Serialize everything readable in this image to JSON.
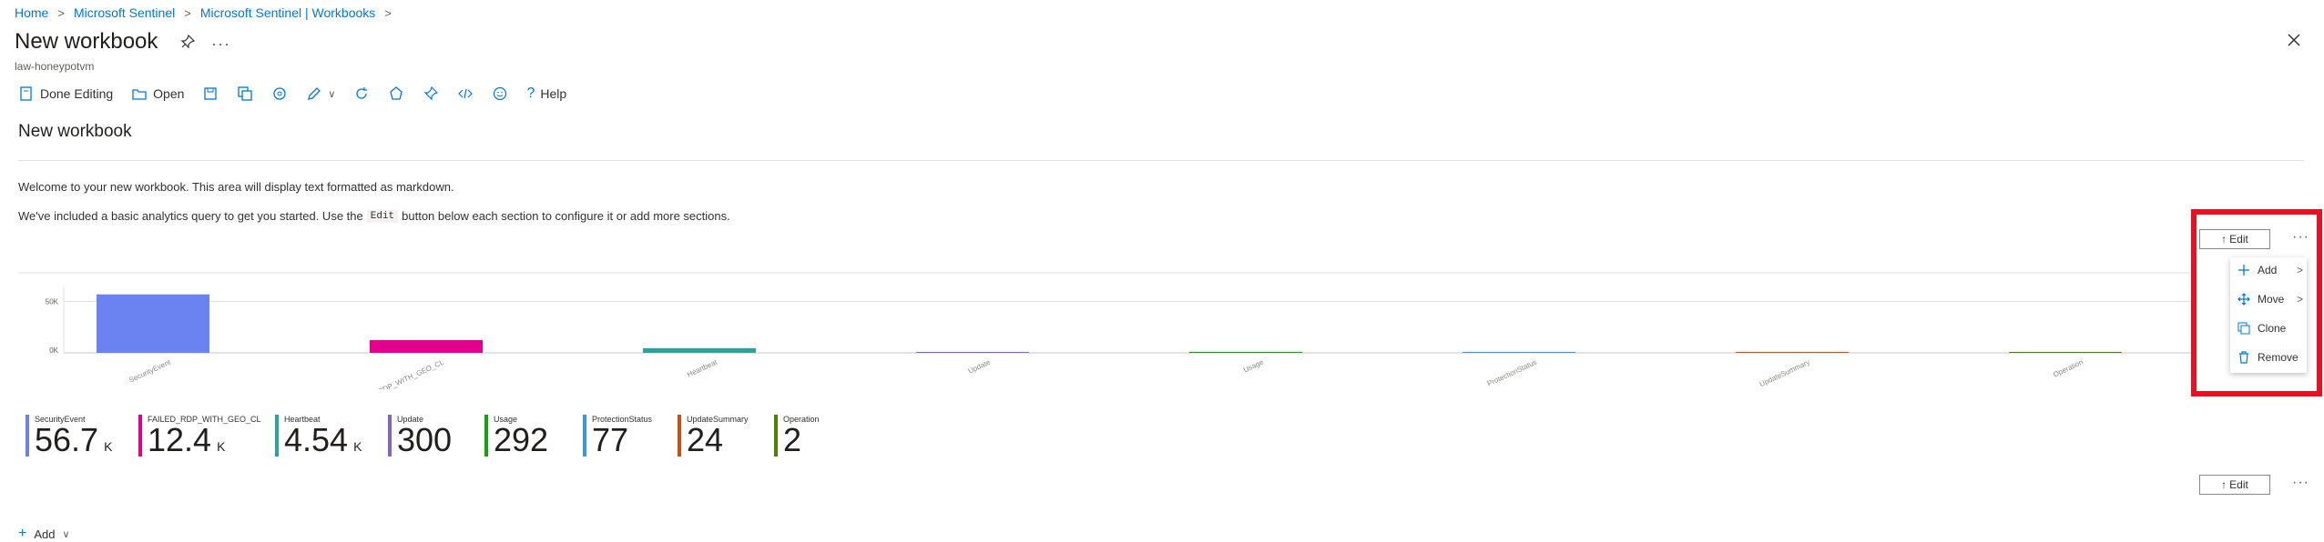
{
  "breadcrumb": [
    "Home",
    "Microsoft Sentinel",
    "Microsoft Sentinel | Workbooks"
  ],
  "header": {
    "title": "New workbook",
    "subtitle": "law-honeypotvm"
  },
  "toolbar": {
    "done_editing": "Done Editing",
    "open": "Open",
    "help": "Help"
  },
  "content": {
    "heading": "New workbook",
    "para1": "Welcome to your new workbook. This area will display text formatted as markdown.",
    "para2_before": "We've included a basic analytics query to get you started. Use the",
    "para2_code": "Edit",
    "para2_after": "button below each section to configure it or add more sections."
  },
  "section": {
    "edit_label": "Edit",
    "more": "···"
  },
  "menu": {
    "add": "Add",
    "move": "Move",
    "clone": "Clone",
    "remove": "Remove"
  },
  "chart_data": {
    "type": "bar",
    "categories": [
      "SecurityEvent",
      "FAILED_RDP_WITH_GEO_CL",
      "Heartbeat",
      "Update",
      "Usage",
      "ProtectionStatus",
      "UpdateSummary",
      "Operation"
    ],
    "values": [
      56700,
      12400,
      4540,
      300,
      292,
      77,
      24,
      2
    ],
    "colors": [
      "#6b83f1",
      "#e3008c",
      "#2ba39b",
      "#8764b8",
      "#13a10e",
      "#3a96dd",
      "#ca5010",
      "#498205"
    ],
    "yticks": [
      "50K",
      "0K"
    ],
    "ylim": [
      0,
      60000
    ]
  },
  "tiles": [
    {
      "label": "SecurityEvent",
      "value": "56.7",
      "unit": "K"
    },
    {
      "label": "FAILED_RDP_WITH_GEO_CL",
      "value": "12.4",
      "unit": "K"
    },
    {
      "label": "Heartbeat",
      "value": "4.54",
      "unit": "K"
    },
    {
      "label": "Update",
      "value": "300",
      "unit": ""
    },
    {
      "label": "Usage",
      "value": "292",
      "unit": ""
    },
    {
      "label": "ProtectionStatus",
      "value": "77",
      "unit": ""
    },
    {
      "label": "UpdateSummary",
      "value": "24",
      "unit": ""
    },
    {
      "label": "Operation",
      "value": "2",
      "unit": ""
    }
  ],
  "footer": {
    "add": "Add"
  }
}
